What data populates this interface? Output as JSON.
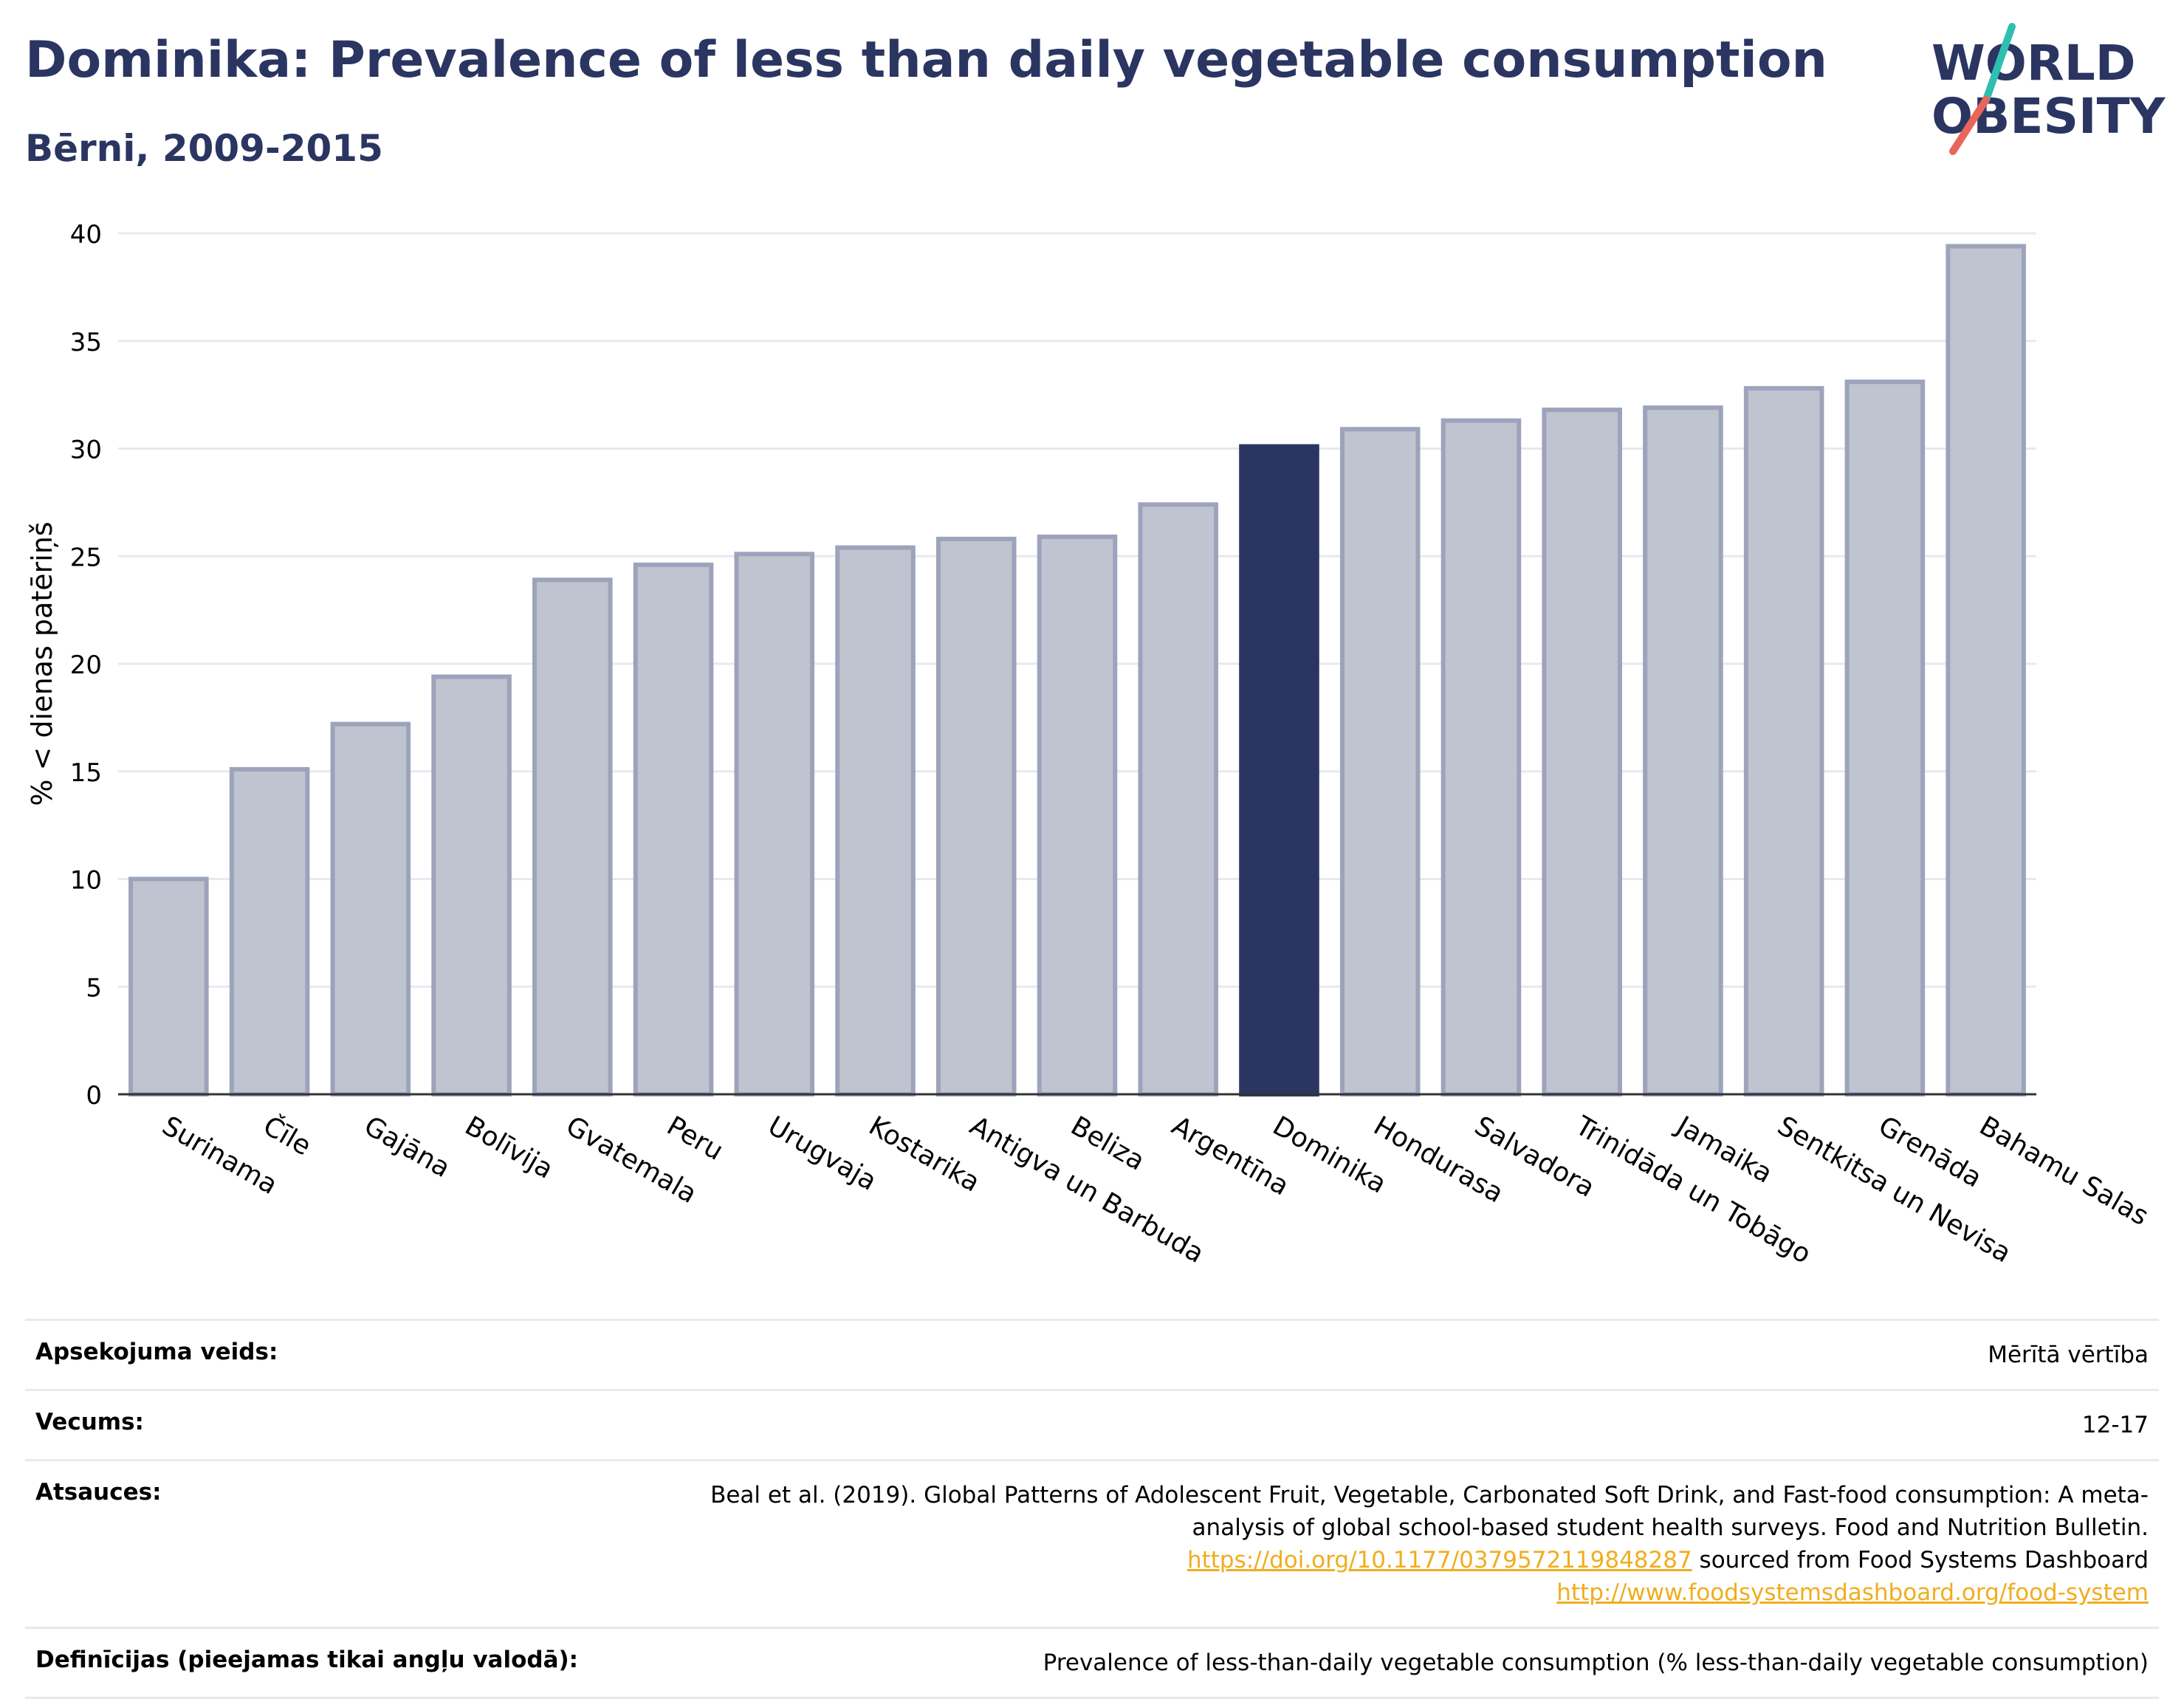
{
  "header": {
    "title": "Dominika: Prevalence of less than daily vegetable consumption",
    "subtitle": "Bērni, 2009-2015"
  },
  "logo": {
    "line1": "WORLD",
    "line2": "OBESITY",
    "text_color": "#2b3561",
    "slash_colors": [
      "#2fbfb0",
      "#e8655a"
    ]
  },
  "chart_data": {
    "type": "bar",
    "title": "Dominika: Prevalence of less than daily vegetable consumption",
    "subtitle": "Bērni, 2009-2015",
    "xlabel": "",
    "ylabel": "% < dienas patēriņš",
    "ylim": [
      0,
      40
    ],
    "yticks": [
      0,
      5,
      10,
      15,
      20,
      25,
      30,
      35,
      40
    ],
    "grid": true,
    "highlight": "Dominika",
    "colors": {
      "bar": "#c0c3d0",
      "bar_edge": "#9da3bb",
      "highlight": "#2b3561"
    },
    "categories": [
      "Surinama",
      "Čīle",
      "Gajāna",
      "Bolīvija",
      "Gvatemala",
      "Peru",
      "Urugvaja",
      "Kostarika",
      "Antigva un Barbuda",
      "Beliza",
      "Argentīna",
      "Dominika",
      "Hondurasa",
      "Salvadora",
      "Trinidāda un Tobāgo",
      "Jamaika",
      "Sentkitsa un Nevisa",
      "Grenāda",
      "Bahamu Salas"
    ],
    "values": [
      10.0,
      15.1,
      17.2,
      19.4,
      23.9,
      24.6,
      25.1,
      25.4,
      25.8,
      25.9,
      27.4,
      30.1,
      30.9,
      31.3,
      31.8,
      31.9,
      32.8,
      33.1,
      39.4
    ]
  },
  "meta": {
    "rows": [
      {
        "label": "Apsekojuma veids:",
        "value": "Mērītā vērtība"
      },
      {
        "label": "Vecums:",
        "value": "12-17"
      },
      {
        "label": "Atsauces:",
        "value": ""
      },
      {
        "label": "Definīcijas (pieejamas tikai angļu valodā):",
        "value": "Prevalence of less-than-daily vegetable consumption (% less-than-daily vegetable consumption)"
      }
    ],
    "reference": {
      "text1": "Beal et al. (2019). Global Patterns of Adolescent Fruit, Vegetable, Carbonated Soft Drink, and Fast-food consumption: A meta-analysis of global school-based student health surveys. Food and Nutrition Bulletin.",
      "link1": "https://doi.org/10.1177/0379572119848287",
      "text2": "sourced from Food Systems Dashboard",
      "link2": "http://www.foodsystemsdashboard.org/food-system"
    }
  }
}
